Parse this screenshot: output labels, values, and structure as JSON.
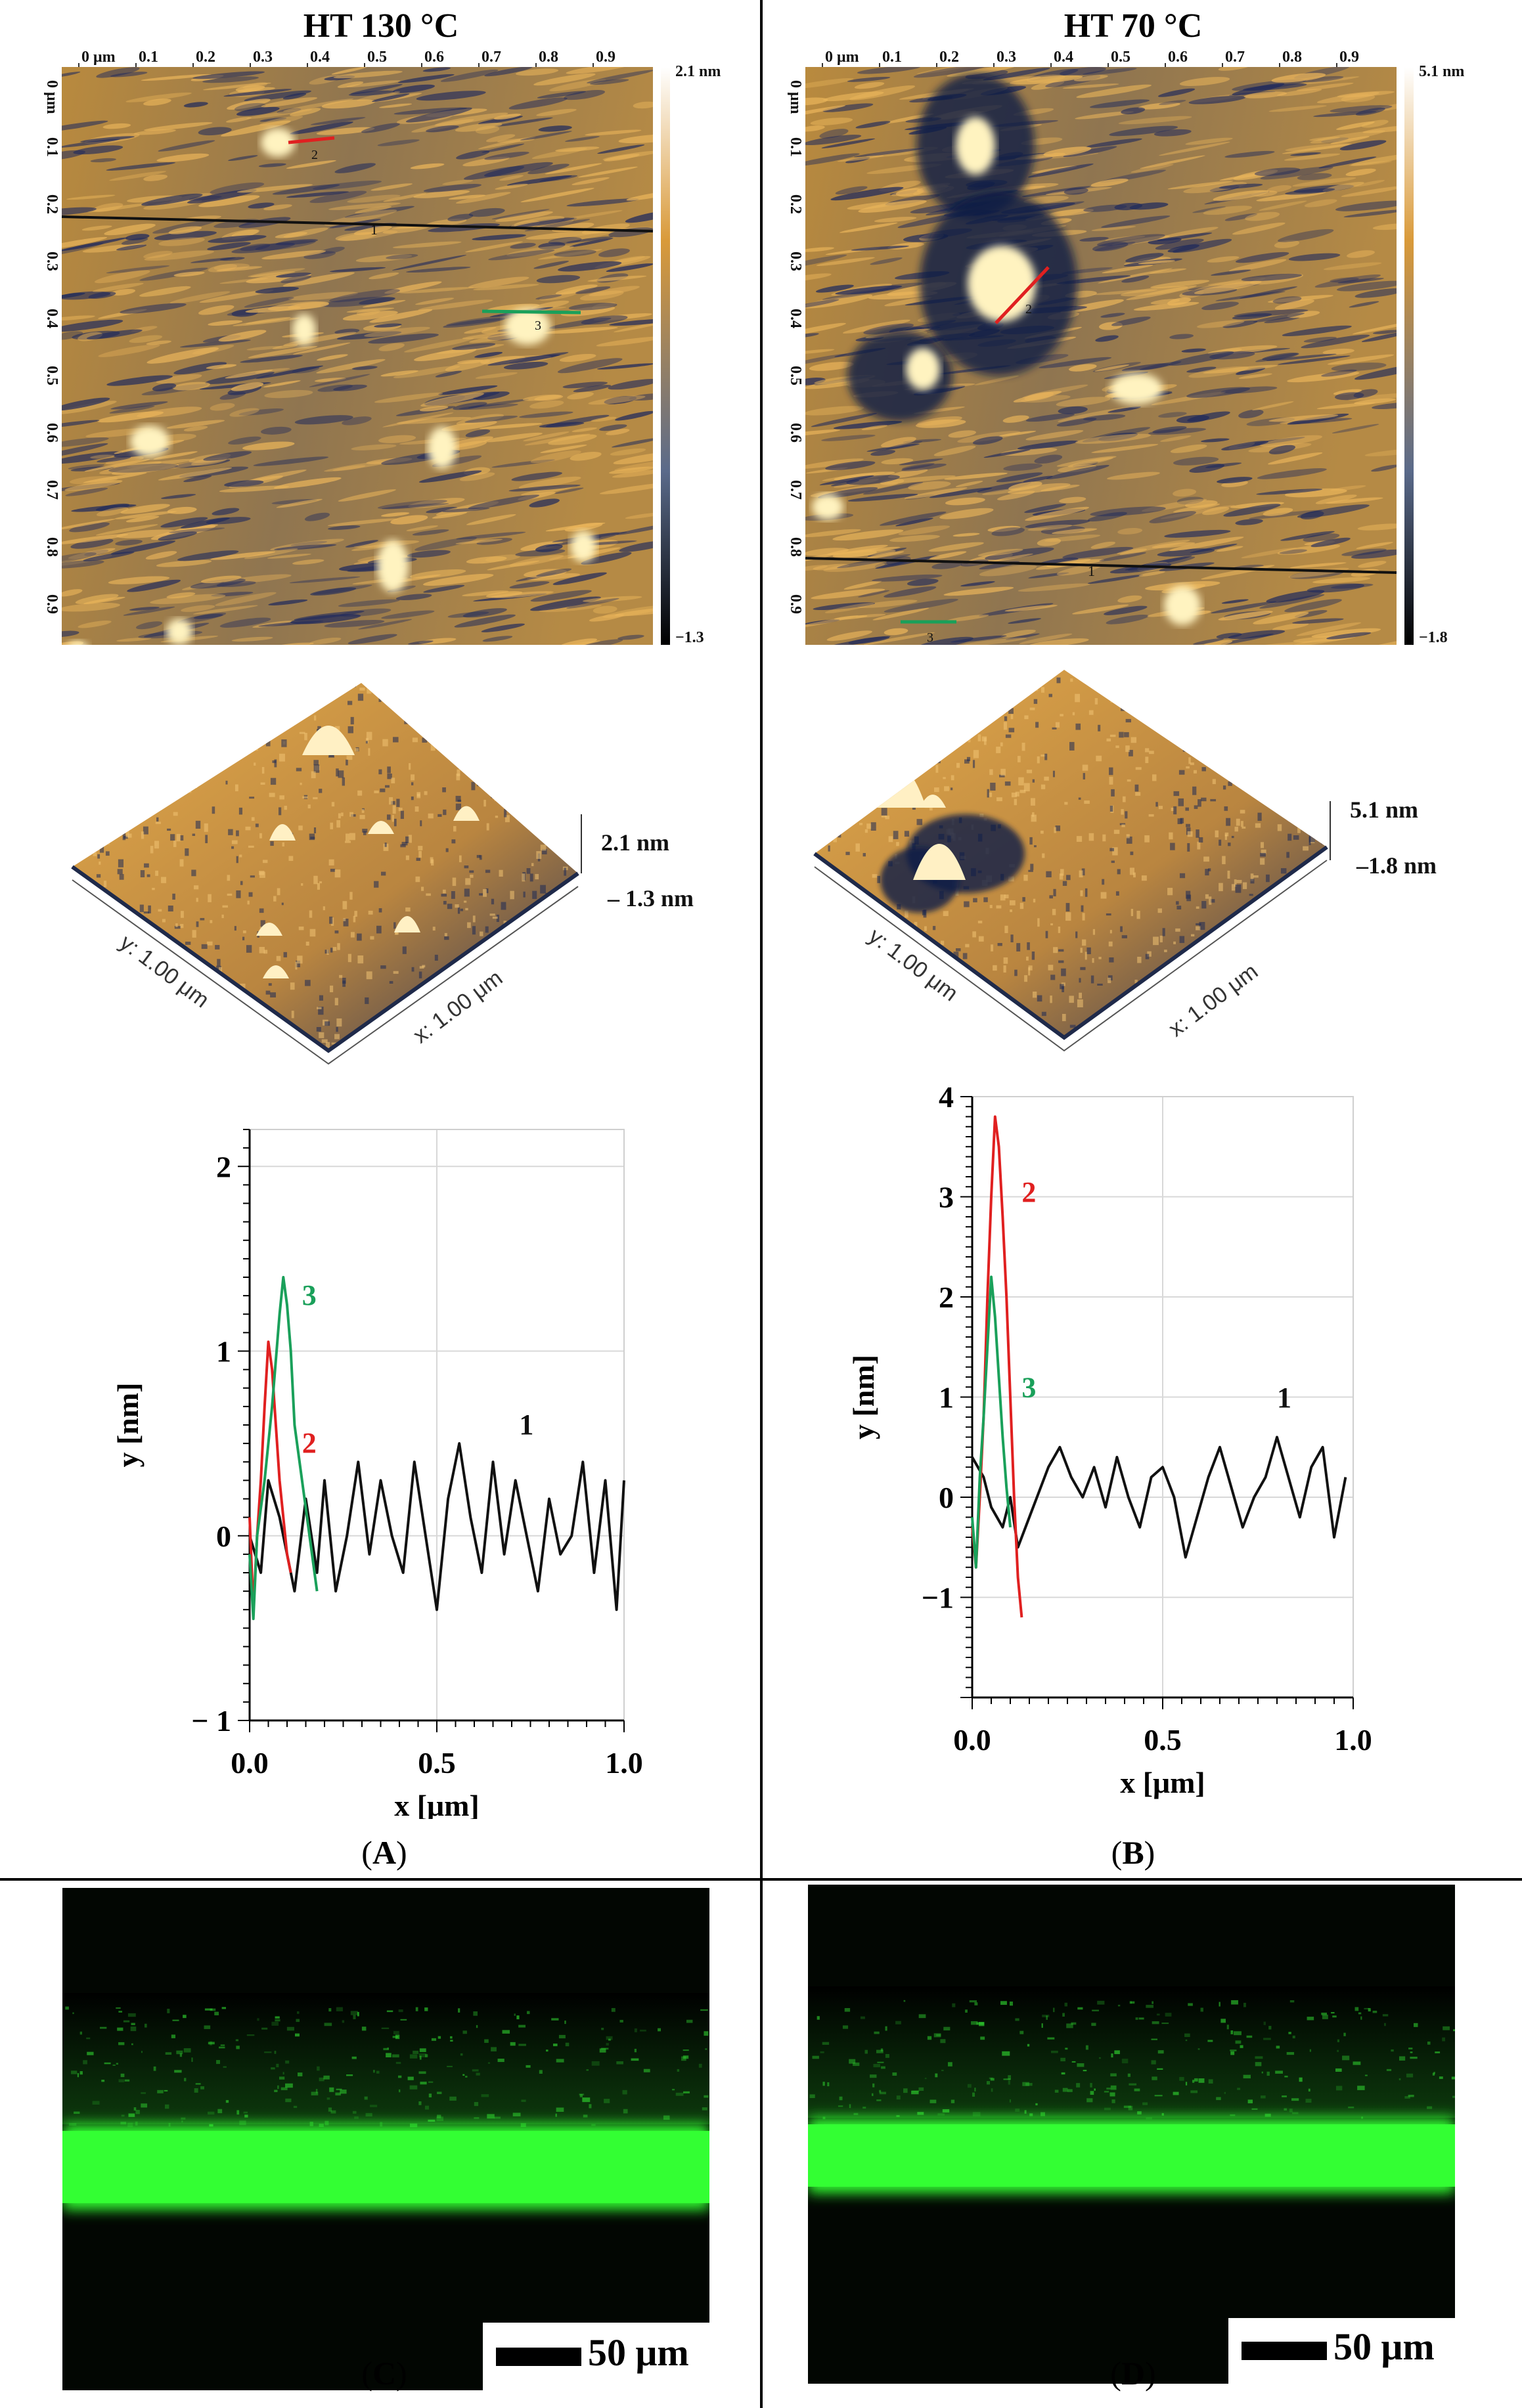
{
  "panels": {
    "left_title": "HT 130 °C",
    "right_title": "HT 70 °C",
    "label_A": "A",
    "label_B": "B",
    "label_C": "C",
    "label_D": "D"
  },
  "afm_2d": {
    "x_ticks": [
      "0 μm",
      "0.1",
      "0.2",
      "0.3",
      "0.4",
      "0.5",
      "0.6",
      "0.7",
      "0.8",
      "0.9"
    ],
    "y_ticks": [
      "0 μm",
      "0.1",
      "0.2",
      "0.3",
      "0.4",
      "0.5",
      "0.6",
      "0.7",
      "0.8",
      "0.9"
    ],
    "left_scale_max": "2.1 nm",
    "left_scale_min": "−1.3",
    "right_scale_max": "5.1 nm",
    "right_scale_min": "−1.8",
    "line_labels": [
      "1",
      "2",
      "3"
    ],
    "colors": {
      "line1": "#111111",
      "line2": "#e02020",
      "line3": "#1aa05a",
      "height_high": "#fff3c0",
      "height_mid": "#d99a3a",
      "height_low": "#202a5c"
    }
  },
  "afm_3d": {
    "left_max": "2.1 nm",
    "left_min": "– 1.3 nm",
    "right_max": "5.1 nm",
    "right_min": "–1.8 nm",
    "y_axis": "y: 1.00 μm",
    "x_axis": "x: 1.00 μm"
  },
  "chart_data": [
    {
      "type": "line",
      "panel": "A",
      "xlabel": "x [μm]",
      "ylabel": "y [nm]",
      "xlim": [
        0,
        1.0
      ],
      "ylim": [
        -1,
        2.2
      ],
      "x_ticks": [
        "0.0",
        "0.5",
        "1.0"
      ],
      "y_ticks": [
        "2",
        "1",
        "0",
        "− 1"
      ],
      "y_tick_values": [
        2,
        1,
        0,
        -1
      ],
      "series": [
        {
          "name": "1",
          "color": "#111111",
          "x": [
            0,
            0.03,
            0.05,
            0.08,
            0.1,
            0.12,
            0.15,
            0.18,
            0.2,
            0.23,
            0.26,
            0.29,
            0.32,
            0.35,
            0.38,
            0.41,
            0.44,
            0.47,
            0.5,
            0.53,
            0.56,
            0.59,
            0.62,
            0.65,
            0.68,
            0.71,
            0.74,
            0.77,
            0.8,
            0.83,
            0.86,
            0.89,
            0.92,
            0.95,
            0.98,
            1.0
          ],
          "values": [
            0.0,
            -0.2,
            0.3,
            0.1,
            -0.1,
            -0.3,
            0.2,
            -0.2,
            0.3,
            -0.3,
            0.0,
            0.4,
            -0.1,
            0.3,
            0.0,
            -0.2,
            0.4,
            0.0,
            -0.4,
            0.2,
            0.5,
            0.1,
            -0.2,
            0.4,
            -0.1,
            0.3,
            0.0,
            -0.3,
            0.2,
            -0.1,
            0.0,
            0.4,
            -0.2,
            0.3,
            -0.4,
            0.3
          ]
        },
        {
          "name": "2",
          "color": "#e02020",
          "x": [
            0,
            0.01,
            0.02,
            0.03,
            0.04,
            0.05,
            0.06,
            0.07,
            0.08,
            0.09,
            0.1,
            0.11
          ],
          "values": [
            0.1,
            -0.4,
            0.0,
            0.3,
            0.7,
            1.05,
            0.9,
            0.6,
            0.3,
            0.1,
            -0.1,
            -0.2
          ]
        },
        {
          "name": "3",
          "color": "#1aa05a",
          "x": [
            0,
            0.01,
            0.02,
            0.04,
            0.06,
            0.08,
            0.09,
            0.1,
            0.11,
            0.12,
            0.14,
            0.16,
            0.18
          ],
          "values": [
            -0.1,
            -0.45,
            0.0,
            0.3,
            0.7,
            1.2,
            1.4,
            1.25,
            1.0,
            0.6,
            0.3,
            0.0,
            -0.3
          ]
        }
      ]
    },
    {
      "type": "line",
      "panel": "B",
      "xlabel": "x [μm]",
      "ylabel": "y [nm]",
      "xlim": [
        0,
        1.0
      ],
      "ylim": [
        -2,
        4
      ],
      "x_ticks": [
        "0.0",
        "0.5",
        "1.0"
      ],
      "y_ticks": [
        "4",
        "3",
        "2",
        "1",
        "0",
        "−1"
      ],
      "y_tick_values": [
        4,
        3,
        2,
        1,
        0,
        -1
      ],
      "series": [
        {
          "name": "1",
          "color": "#111111",
          "x": [
            0,
            0.03,
            0.05,
            0.08,
            0.1,
            0.12,
            0.15,
            0.18,
            0.2,
            0.23,
            0.26,
            0.29,
            0.32,
            0.35,
            0.38,
            0.41,
            0.44,
            0.47,
            0.5,
            0.53,
            0.56,
            0.59,
            0.62,
            0.65,
            0.68,
            0.71,
            0.74,
            0.77,
            0.8,
            0.83,
            0.86,
            0.89,
            0.92,
            0.95,
            0.98
          ],
          "values": [
            0.4,
            0.2,
            -0.1,
            -0.3,
            0.0,
            -0.5,
            -0.2,
            0.1,
            0.3,
            0.5,
            0.2,
            0.0,
            0.3,
            -0.1,
            0.4,
            0.0,
            -0.3,
            0.2,
            0.3,
            0.0,
            -0.6,
            -0.2,
            0.2,
            0.5,
            0.1,
            -0.3,
            0.0,
            0.2,
            0.6,
            0.2,
            -0.2,
            0.3,
            0.5,
            -0.4,
            0.2
          ]
        },
        {
          "name": "2",
          "color": "#e02020",
          "x": [
            0,
            0.01,
            0.02,
            0.03,
            0.04,
            0.05,
            0.06,
            0.07,
            0.08,
            0.09,
            0.1,
            0.11,
            0.12,
            0.13
          ],
          "values": [
            -0.3,
            -0.7,
            0.0,
            0.8,
            2.0,
            3.0,
            3.8,
            3.5,
            2.8,
            2.0,
            1.0,
            0.0,
            -0.8,
            -1.2
          ]
        },
        {
          "name": "3",
          "color": "#1aa05a",
          "x": [
            0,
            0.01,
            0.02,
            0.03,
            0.04,
            0.05,
            0.06,
            0.07,
            0.08,
            0.09,
            0.1
          ],
          "values": [
            -0.2,
            -0.7,
            0.2,
            0.8,
            1.5,
            2.2,
            1.8,
            1.2,
            0.6,
            0.1,
            -0.3
          ]
        }
      ]
    }
  ],
  "micrographs": {
    "scalebar_label": "50 μm",
    "color": "#33ff33"
  }
}
